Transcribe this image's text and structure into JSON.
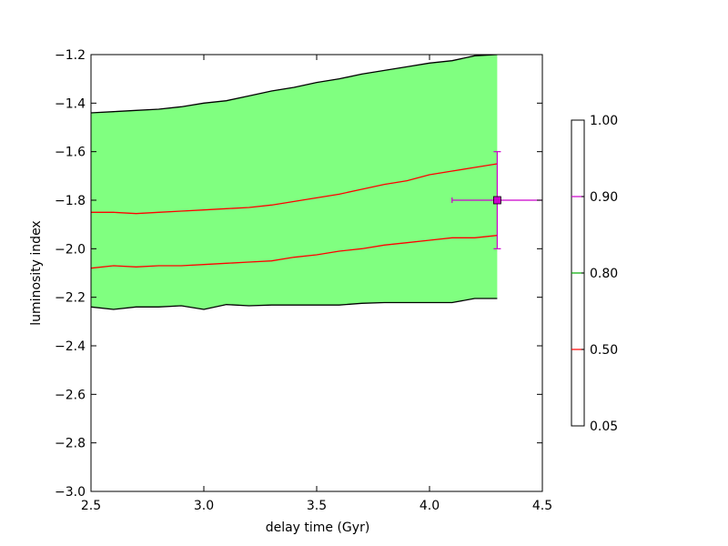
{
  "chart_data": {
    "type": "line",
    "xlabel": "delay time (Gyr)",
    "ylabel": "luminosity index",
    "xlim": [
      2.5,
      4.5
    ],
    "ylim": [
      -3.0,
      -1.2
    ],
    "x_ticks": [
      "2.5",
      "3.0",
      "3.5",
      "4.0",
      "4.5"
    ],
    "x_tick_values": [
      2.5,
      3.0,
      3.5,
      4.0,
      4.5
    ],
    "y_ticks": [
      "−3.0",
      "−2.8",
      "−2.6",
      "−2.4",
      "−2.2",
      "−2.0",
      "−1.8",
      "−1.6",
      "−1.4",
      "−1.2"
    ],
    "y_tick_values": [
      -3.0,
      -2.8,
      -2.6,
      -2.4,
      -2.2,
      -2.0,
      -1.8,
      -1.6,
      -1.4,
      -1.2
    ],
    "grid": false,
    "band": {
      "color": "#80ff80",
      "x": [
        2.5,
        2.6,
        2.7,
        2.8,
        2.9,
        3.0,
        3.1,
        3.2,
        3.3,
        3.4,
        3.5,
        3.6,
        3.7,
        3.8,
        3.9,
        4.0,
        4.1,
        4.2,
        4.3
      ],
      "upper": [
        -1.44,
        -1.435,
        -1.43,
        -1.425,
        -1.415,
        -1.4,
        -1.39,
        -1.37,
        -1.35,
        -1.335,
        -1.315,
        -1.3,
        -1.28,
        -1.265,
        -1.25,
        -1.235,
        -1.225,
        -1.205,
        -1.2
      ],
      "lower": [
        -2.24,
        -2.25,
        -2.24,
        -2.24,
        -2.235,
        -2.25,
        -2.23,
        -2.235,
        -2.232,
        -2.232,
        -2.232,
        -2.232,
        -2.225,
        -2.222,
        -2.222,
        -2.222,
        -2.222,
        -2.205,
        -2.205
      ]
    },
    "series": [
      {
        "color": "#ff0000",
        "x": [
          2.5,
          2.6,
          2.7,
          2.8,
          2.9,
          3.0,
          3.1,
          3.2,
          3.3,
          3.4,
          3.5,
          3.6,
          3.7,
          3.8,
          3.9,
          4.0,
          4.1,
          4.2,
          4.3
        ],
        "values": [
          -1.85,
          -1.85,
          -1.855,
          -1.85,
          -1.845,
          -1.84,
          -1.835,
          -1.83,
          -1.82,
          -1.805,
          -1.79,
          -1.775,
          -1.755,
          -1.735,
          -1.72,
          -1.695,
          -1.68,
          -1.665,
          -1.65
        ]
      },
      {
        "color": "#ff0000",
        "x": [
          2.5,
          2.6,
          2.7,
          2.8,
          2.9,
          3.0,
          3.1,
          3.2,
          3.3,
          3.4,
          3.5,
          3.6,
          3.7,
          3.8,
          3.9,
          4.0,
          4.1,
          4.2,
          4.3
        ],
        "values": [
          -2.08,
          -2.07,
          -2.075,
          -2.07,
          -2.07,
          -2.065,
          -2.06,
          -2.055,
          -2.05,
          -2.035,
          -2.025,
          -2.01,
          -2.0,
          -1.985,
          -1.975,
          -1.965,
          -1.955,
          -1.955,
          -1.945
        ]
      },
      {
        "color": "#000000",
        "x": [
          2.5,
          2.6,
          2.7,
          2.8,
          2.9,
          3.0,
          3.1,
          3.2,
          3.3,
          3.4,
          3.5,
          3.6,
          3.7,
          3.8,
          3.9,
          4.0,
          4.1,
          4.2,
          4.3
        ],
        "values": [
          -1.44,
          -1.435,
          -1.43,
          -1.425,
          -1.415,
          -1.4,
          -1.39,
          -1.37,
          -1.35,
          -1.335,
          -1.315,
          -1.3,
          -1.28,
          -1.265,
          -1.25,
          -1.235,
          -1.225,
          -1.205,
          -1.2
        ]
      },
      {
        "color": "#000000",
        "x": [
          2.5,
          2.6,
          2.7,
          2.8,
          2.9,
          3.0,
          3.1,
          3.2,
          3.3,
          3.4,
          3.5,
          3.6,
          3.7,
          3.8,
          3.9,
          4.0,
          4.1,
          4.2,
          4.3
        ],
        "values": [
          -2.24,
          -2.25,
          -2.24,
          -2.24,
          -2.235,
          -2.25,
          -2.23,
          -2.235,
          -2.232,
          -2.232,
          -2.232,
          -2.232,
          -2.225,
          -2.222,
          -2.222,
          -2.222,
          -2.222,
          -2.205,
          -2.205
        ]
      }
    ],
    "marker": {
      "x": 4.3,
      "y": -1.8,
      "x_err": [
        0.2,
        0.2
      ],
      "y_err": [
        0.2,
        0.2
      ],
      "color": "#cc00cc",
      "shape": "square"
    },
    "colorbar": {
      "position": "right",
      "tick_labels": [
        "0.05",
        "0.50",
        "0.80",
        "0.90",
        "1.00"
      ],
      "levels": [
        {
          "value": 0.5,
          "color": "#ff0000"
        },
        {
          "value": 0.8,
          "color": "#00aa00"
        },
        {
          "value": 0.9,
          "color": "#cc00cc"
        }
      ]
    }
  }
}
